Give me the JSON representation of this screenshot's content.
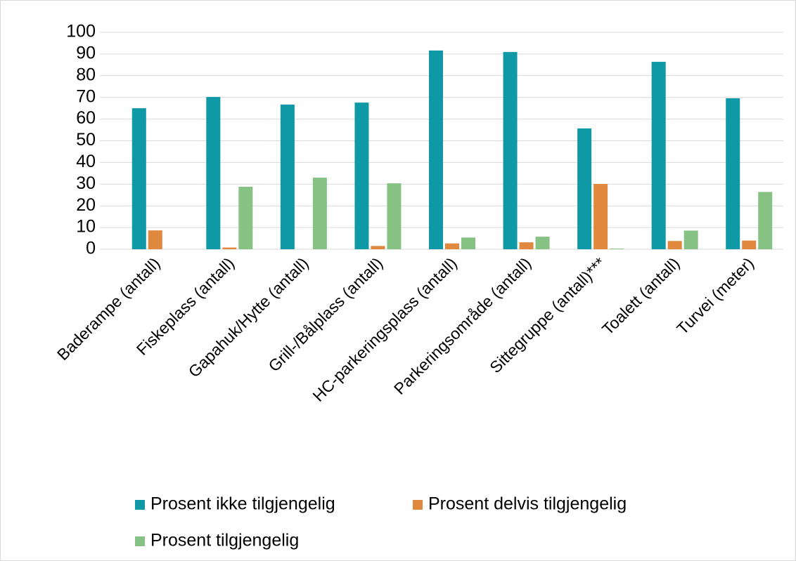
{
  "chart_data": {
    "type": "bar",
    "categories": [
      "Baderampe (antall)",
      "Fiskeplass (antall)",
      "Gapahuk/Hytte (antall)",
      "Grill-/Bålplass (antall)",
      "HC-parkeringsplass (antall)",
      "Parkeringsområde (antall)",
      "Sittegruppe (antall)***",
      "Toalett (antall)",
      "Turvei (meter)"
    ],
    "series": [
      {
        "name": "Prosent ikke tilgjengelig",
        "color": "#0f98a6",
        "values": [
          65,
          70.2,
          66.7,
          67.6,
          91.6,
          90.9,
          55.7,
          86.4,
          69.6
        ]
      },
      {
        "name": "Prosent delvis tilgjengelig",
        "color": "#e0883e",
        "values": [
          8.7,
          0.8,
          0,
          1.5,
          2.7,
          3.2,
          30.1,
          3.8,
          4
        ]
      },
      {
        "name": "Prosent tilgjengelig",
        "color": "#85c284",
        "values": [
          0,
          28.8,
          33,
          30.4,
          5.4,
          5.8,
          0.3,
          8.6,
          26.4
        ]
      }
    ],
    "ylim": [
      0,
      100
    ],
    "yticks": [
      0,
      10,
      20,
      30,
      40,
      50,
      60,
      70,
      80,
      90,
      100
    ],
    "grid": true,
    "legend": "bottom"
  }
}
